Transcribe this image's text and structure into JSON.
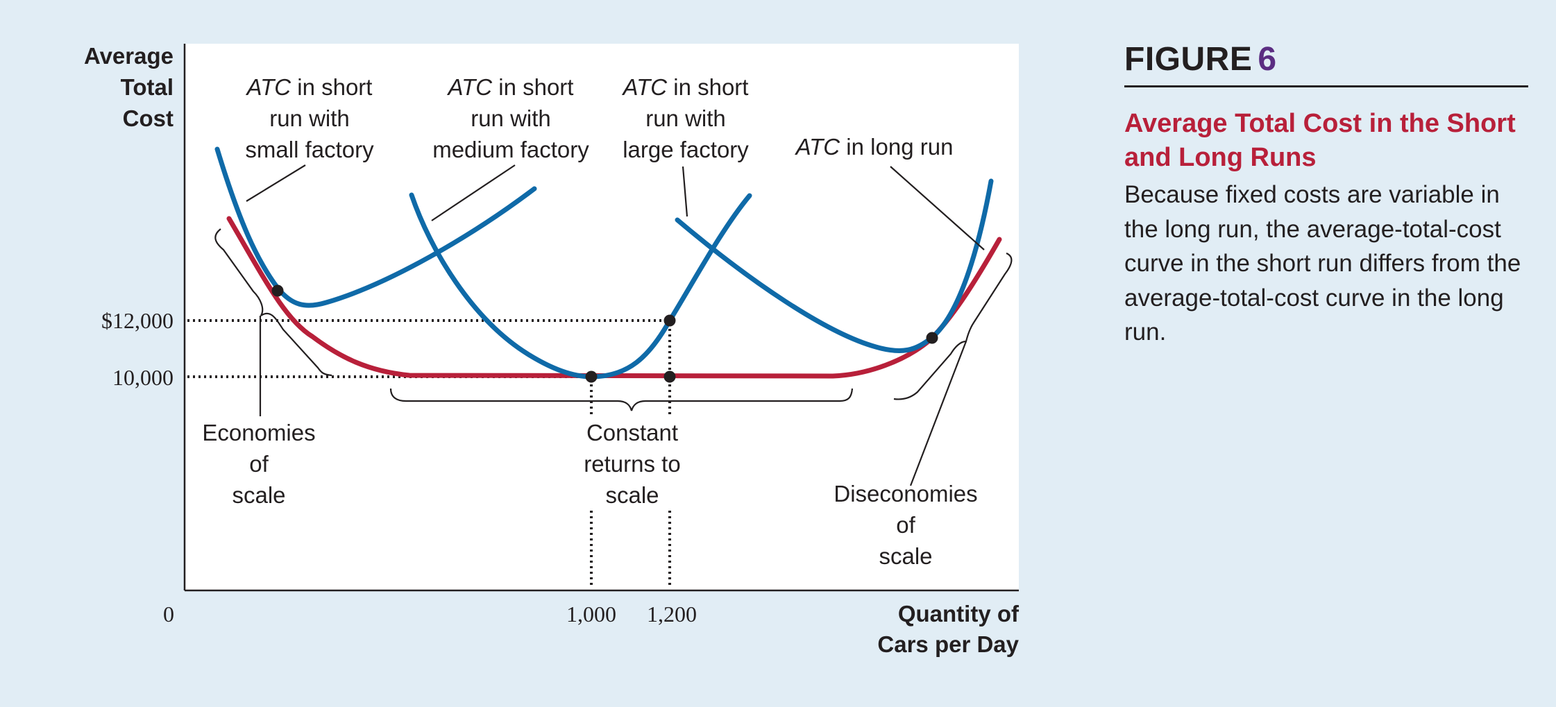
{
  "figure": {
    "label": "FIGURE",
    "number": "6",
    "title": "Average Total Cost in the Short and Long Runs",
    "caption": "Because fixed costs are variable in the long run, the average-total-cost curve in the short run differs from the average-total-cost curve in the long run."
  },
  "axes": {
    "y_label": [
      "Average",
      "Total",
      "Cost"
    ],
    "x_label": [
      "Quantity of",
      "Cars per Day"
    ],
    "origin": "0",
    "y_ticks": [
      "$12,000",
      "10,000"
    ],
    "x_ticks": [
      "1,000",
      "1,200"
    ]
  },
  "curve_labels": {
    "small": {
      "atc": "ATC",
      "lines": [
        " in short",
        "run with",
        "small factory"
      ]
    },
    "medium": {
      "atc": "ATC",
      "lines": [
        " in short",
        "run with",
        "medium factory"
      ]
    },
    "large": {
      "atc": "ATC",
      "lines": [
        " in short",
        "run with",
        "large factory"
      ]
    },
    "long": {
      "atc": "ATC",
      "rest": " in long run"
    }
  },
  "regions": {
    "economies": [
      "Economies",
      "of",
      "scale"
    ],
    "constant": [
      "Constant",
      "returns to",
      "scale"
    ],
    "diseconomies": [
      "Diseconomies",
      "of",
      "scale"
    ]
  },
  "colors": {
    "short_run": "#0f6aa8",
    "long_run": "#b8203a",
    "background": "#e1edf5",
    "plot_area": "#ffffff",
    "figure_number": "#5b2d82"
  }
}
